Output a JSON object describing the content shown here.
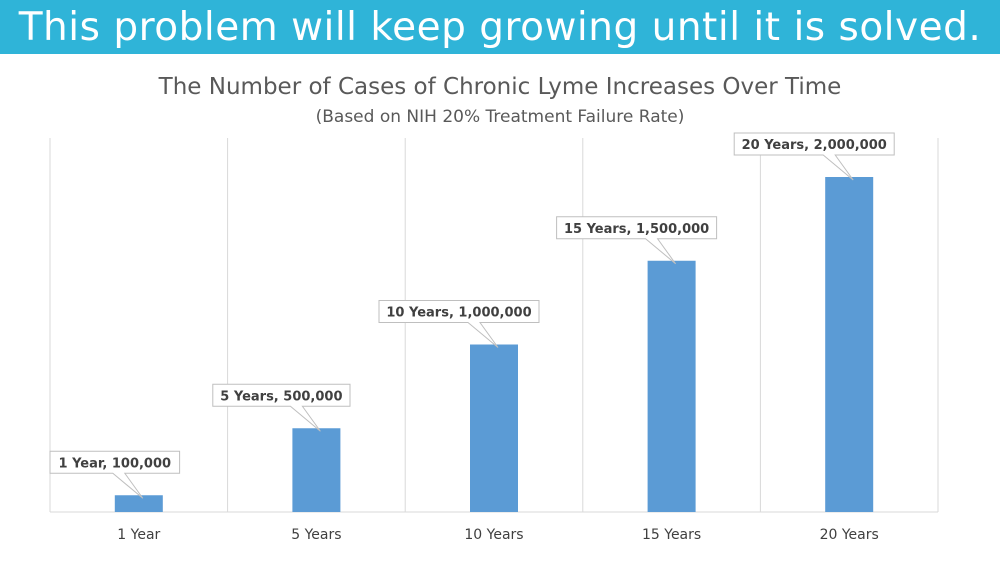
{
  "banner": {
    "text": "This problem will keep growing until it is solved."
  },
  "colors": {
    "banner": "#2fb4d8",
    "bar": "#5b9bd5",
    "text": "#595959"
  },
  "chart_data": {
    "type": "bar",
    "title": "The Number of Cases of Chronic Lyme Increases Over Time",
    "subtitle": "(Based on NIH 20% Treatment Failure Rate)",
    "categories": [
      "1 Year",
      "5 Years",
      "10 Years",
      "15 Years",
      "20 Years"
    ],
    "values": [
      100000,
      500000,
      1000000,
      1500000,
      2000000
    ],
    "data_labels": [
      "1 Year,  100,000",
      "5 Years,  500,000",
      "10 Years,  1,000,000",
      "15 Years,  1,500,000",
      "20 Years,  2,000,000"
    ],
    "xlabel": "",
    "ylabel": "",
    "ylim": [
      0,
      2000000
    ],
    "grid": "vertical",
    "legend": "none"
  }
}
